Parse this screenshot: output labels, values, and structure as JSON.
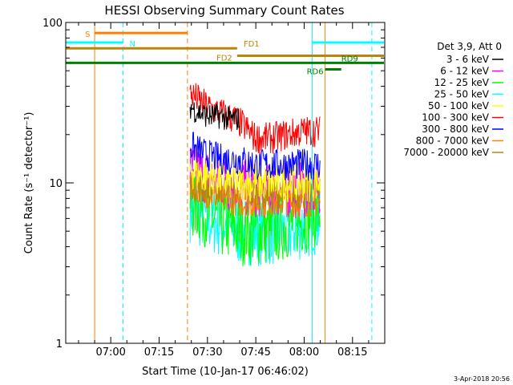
{
  "chart_data": {
    "type": "line",
    "title": "HESSI Observing Summary Count Rates",
    "xlabel": "Start Time (10-Jan-17 06:46:02)",
    "ylabel": "Count Rate (s⁻¹ detector⁻¹)",
    "x_ticks": [
      "07:00",
      "07:15",
      "07:30",
      "07:45",
      "08:00",
      "08:15"
    ],
    "x_tick_minutes": [
      0,
      15,
      30,
      45,
      60,
      75
    ],
    "xlim_minutes_after_0700": [
      -13.97,
      85
    ],
    "y_scale": "log",
    "ylim": [
      1,
      100
    ],
    "y_ticks": [
      "1",
      "10",
      "100"
    ],
    "y_tick_values": [
      1,
      10,
      100
    ],
    "legend": {
      "header": "Det 3,9, Att 0",
      "placement": "right"
    },
    "series": [
      {
        "name": "3 - 6 keV",
        "color": "#000000",
        "t_start": 24.6,
        "t_end": 40.0,
        "values": [
          30,
          28,
          27,
          26,
          26,
          26,
          25,
          25,
          25
        ]
      },
      {
        "name": "6 - 12 keV",
        "color": "#ff00ff",
        "t_start": 24.6,
        "t_end": 65.0,
        "values": [
          12,
          11,
          10,
          9.5,
          9,
          9,
          9,
          9,
          9
        ]
      },
      {
        "name": "12 - 25 keV",
        "color": "#00ff00",
        "t_start": 24.6,
        "t_end": 65.0,
        "values": [
          7.5,
          6.5,
          5.5,
          5,
          5,
          5,
          5.5,
          6,
          6.5
        ]
      },
      {
        "name": "25 - 50 keV",
        "color": "#00ffff",
        "t_start": 24.6,
        "t_end": 65.0,
        "values": [
          7,
          6,
          5.5,
          5,
          5,
          5,
          5,
          5.5,
          6
        ]
      },
      {
        "name": "50 - 100 keV",
        "color": "#ffff00",
        "t_start": 24.6,
        "t_end": 65.0,
        "values": [
          12,
          11,
          10.5,
          10,
          10,
          10,
          10,
          10,
          10
        ]
      },
      {
        "name": "100 - 300 keV",
        "color": "#ff0000",
        "t_start": 24.6,
        "t_end": 65.0,
        "values": [
          36,
          30,
          27,
          24,
          19,
          19,
          20,
          21,
          21
        ]
      },
      {
        "name": "300 - 800 keV",
        "color": "#0000ff",
        "t_start": 24.6,
        "t_end": 65.0,
        "values": [
          17,
          15,
          14,
          14,
          13,
          13,
          13,
          13,
          13
        ]
      },
      {
        "name": "800 - 7000 keV",
        "color": "#ff8000",
        "t_start": 24.6,
        "t_end": 65.0,
        "values": [
          9.5,
          8.5,
          8,
          7.5,
          7.5,
          7.5,
          7.5,
          7.5,
          7.5
        ]
      },
      {
        "name": "7000 - 20000 keV",
        "color": "#b8860b",
        "t_start": 24.6,
        "t_end": 65.0,
        "values": [
          10,
          9,
          9,
          8.5,
          8.5,
          8.5,
          8.5,
          8.5,
          8.5
        ]
      }
    ],
    "flag_bars": [
      {
        "label": "S",
        "color": "#ff8000",
        "t_start": -5.0,
        "t_end": 23.8,
        "y": 86
      },
      {
        "label": "N",
        "color": "#00ffff",
        "t_start": -14.0,
        "t_end": 3.8,
        "y": 75
      },
      {
        "label": "N",
        "color": "#00ffff",
        "t_start": 62.5,
        "t_end": 85.0,
        "y": 75
      },
      {
        "label": "FD1",
        "color": "#b8860b",
        "t_start": -14.0,
        "t_end": 39.2,
        "y": 69
      },
      {
        "label": "FD2",
        "color": "#b8860b",
        "t_start": 39.2,
        "t_end": 85.0,
        "y": 62
      },
      {
        "label": "RD9",
        "color": "#008000",
        "t_start": -14.0,
        "t_end": 85.0,
        "y": 56
      },
      {
        "label": "RD6",
        "color": "#008000",
        "t_start": 66.5,
        "t_end": 71.5,
        "y": 51
      }
    ],
    "vertical_lines": [
      {
        "t": -5.0,
        "color": "#ff8000",
        "style": "solid"
      },
      {
        "t": 3.8,
        "color": "#00ffff",
        "style": "dashed"
      },
      {
        "t": 23.8,
        "color": "#ff8000",
        "style": "dashed"
      },
      {
        "t": 62.5,
        "color": "#00ffff",
        "style": "solid"
      },
      {
        "t": 66.5,
        "color": "#ff8000",
        "style": "solid"
      },
      {
        "t": 81.0,
        "color": "#00ffff",
        "style": "dashed"
      }
    ],
    "grid": false
  },
  "footer_date": "3-Apr-2018 20:56"
}
